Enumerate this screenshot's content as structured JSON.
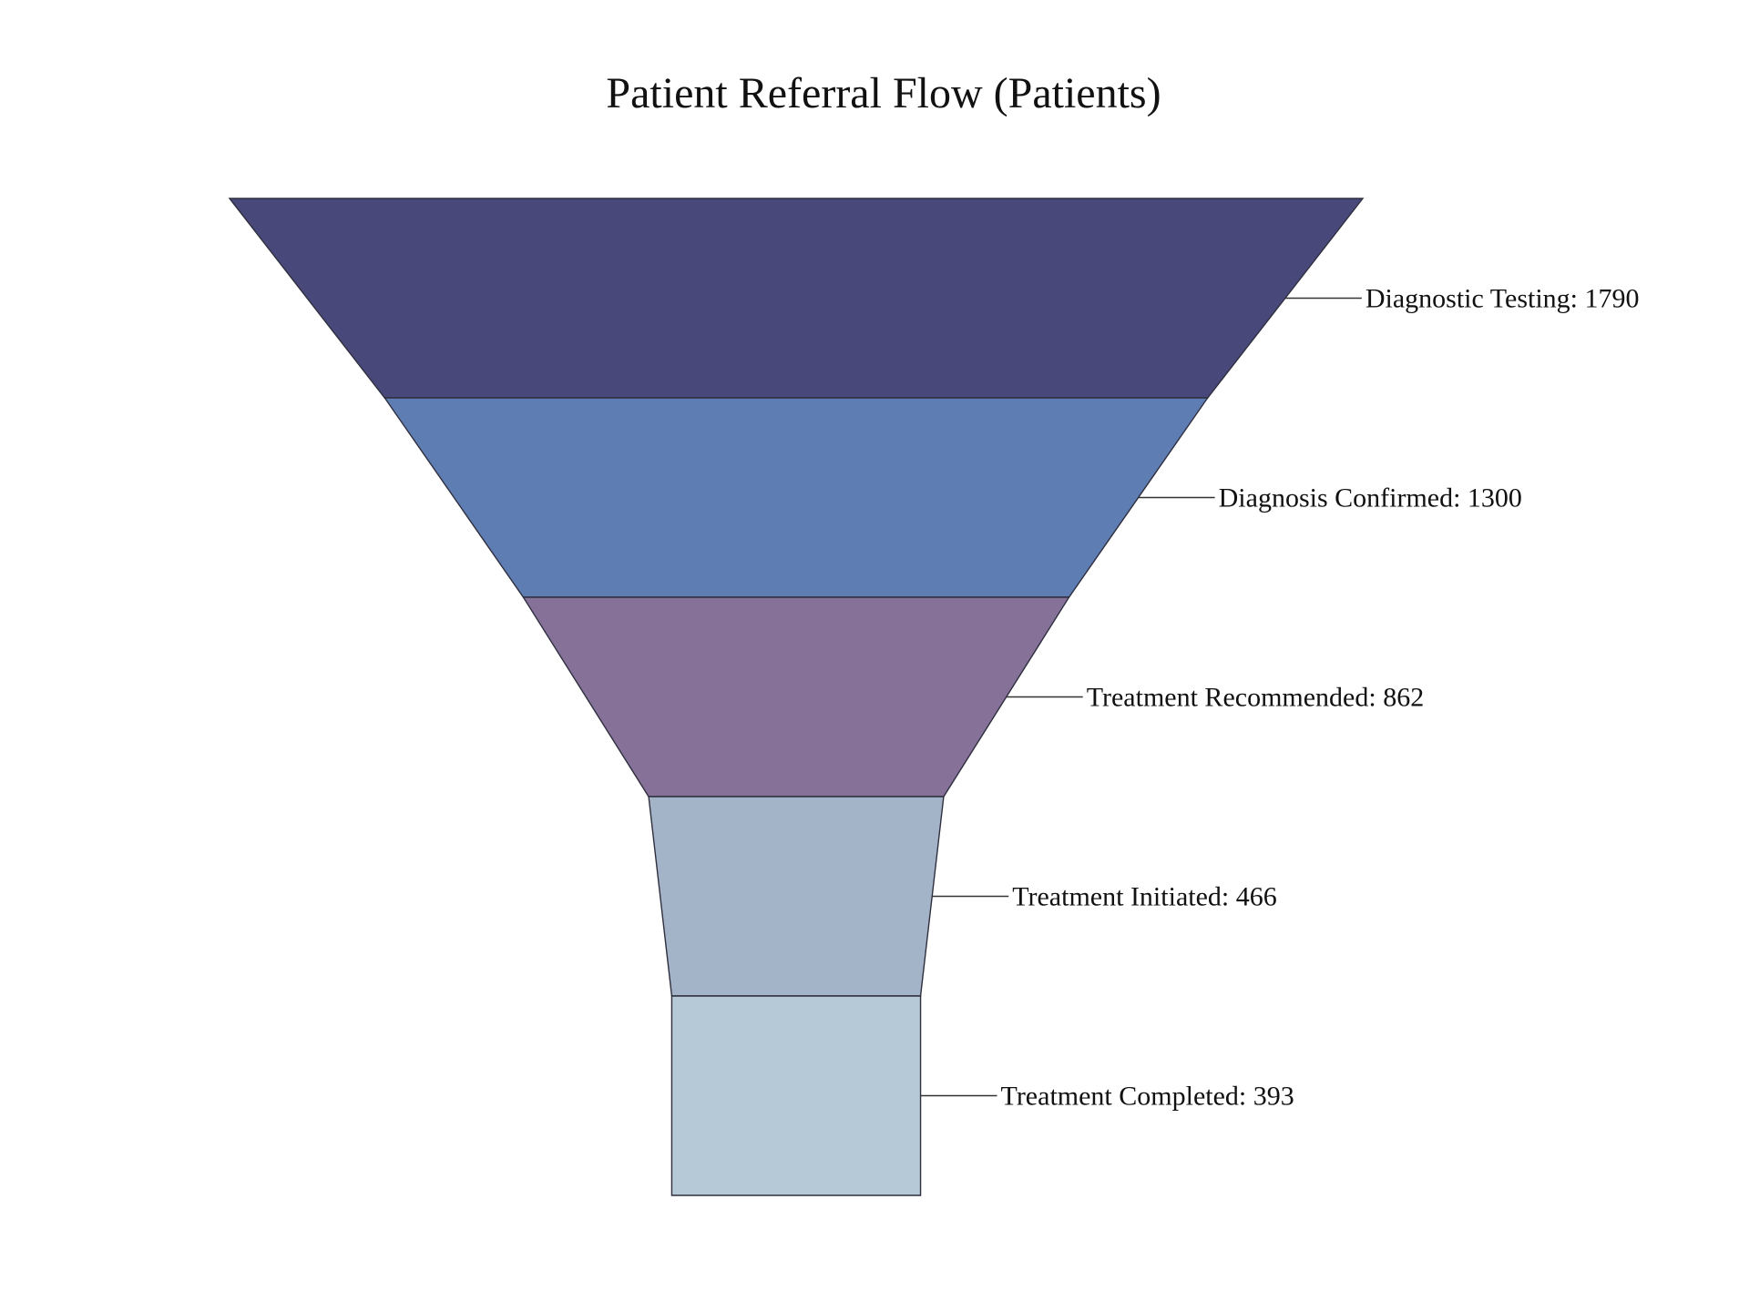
{
  "chart_data": {
    "type": "funnel",
    "title": "Patient Referral Flow (Patients)",
    "stages": [
      {
        "label": "Diagnostic Testing",
        "value": 1790,
        "color": "#48497a"
      },
      {
        "label": "Diagnosis Confirmed",
        "value": 1300,
        "color": "#5e7db2"
      },
      {
        "label": "Treatment Recommended",
        "value": 862,
        "color": "#867299"
      },
      {
        "label": "Treatment Initiated",
        "value": 466,
        "color": "#a3b3c8"
      },
      {
        "label": "Treatment Completed",
        "value": 393,
        "color": "#b6c9d7"
      }
    ],
    "label_format": "{label}: {value}",
    "legend": "none",
    "grid": false
  }
}
